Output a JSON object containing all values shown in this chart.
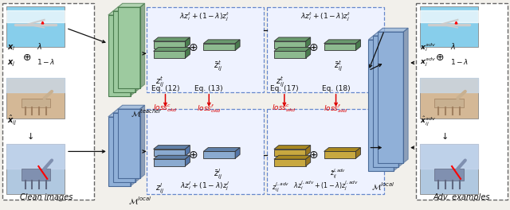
{
  "figsize": [
    6.4,
    2.64
  ],
  "dpi": 100,
  "bg_color": "#f2f0eb",
  "green_dark": "#4a7c4e",
  "green_light": "#8dba8f",
  "blue_dark": "#5577aa",
  "blue_light": "#8aaad0",
  "blue_model": "#7090b8",
  "gold_dark": "#9a7820",
  "gold_light": "#c8a840",
  "red_color": "#dd0000",
  "black": "#111111",
  "eq_labels": [
    "Eq. (12)",
    "Eq. (13)",
    "Eq. (17)",
    "Eq. (18)"
  ],
  "loss_labels_top": [
    "$loss^c_{okd}$",
    "$loss^f_{okd}$",
    "$loss^c_{akd}$",
    "$loss^f_{akd}$"
  ],
  "formula_top": "$\\lambda z^t_i + (1-\\lambda)z^t_j$",
  "formula_bot_left": "$\\lambda z^l_i + (1-\\lambda)z^l_j$",
  "formula_bot_right": "$\\lambda z^{l,adv}_i + (1-\\lambda)z^{l,adv}_j$"
}
